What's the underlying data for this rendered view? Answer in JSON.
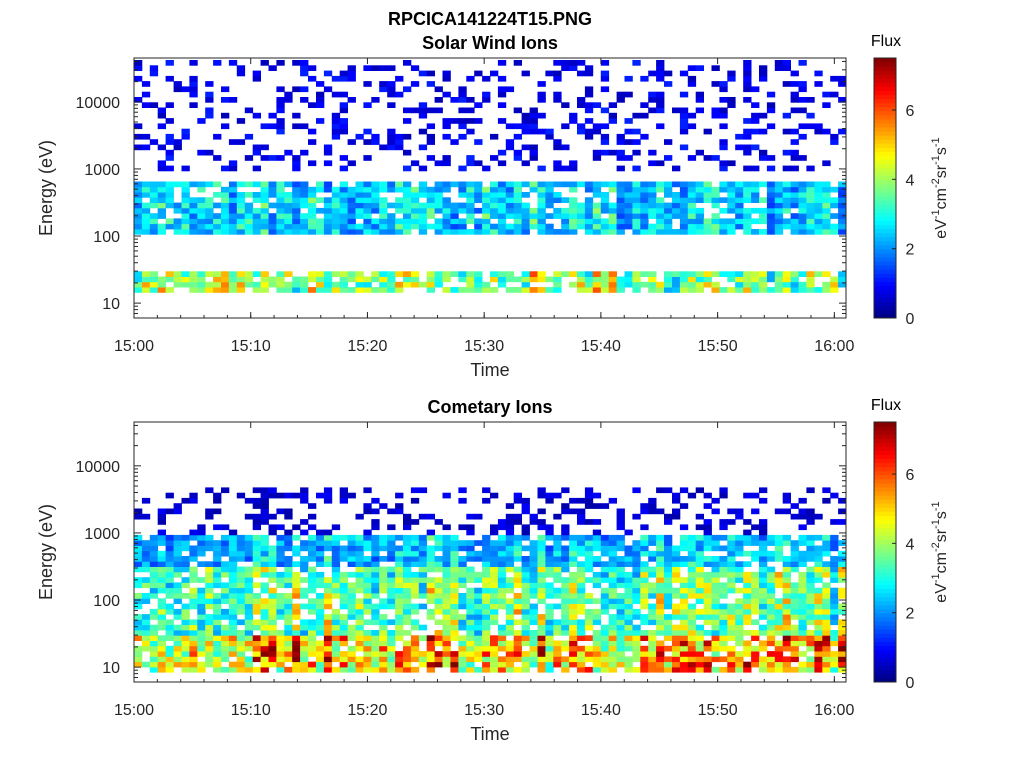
{
  "figure_title": "RPCICA141224T15.PNG",
  "chart_data": [
    {
      "type": "heatmap",
      "title": "Solar Wind Ions",
      "xlabel": "Time",
      "ylabel": "Energy (eV)",
      "y_scale": "log",
      "ylim": [
        6,
        45000
      ],
      "x_range": [
        "15:00",
        "16:01"
      ],
      "x_ticks": [
        "15:00",
        "15:10",
        "15:20",
        "15:30",
        "15:40",
        "15:50",
        "16:00"
      ],
      "y_ticks": [
        "10",
        "100",
        "1000",
        "10000"
      ],
      "colorbar": {
        "title": "Flux",
        "label": "eV-1cm-2sr-1s-1",
        "min": 0,
        "max": 7.5,
        "ticks": [
          "0",
          "2",
          "4",
          "6"
        ],
        "colormap": "jet"
      },
      "description_of_data": "Time-energy spectrogram, ~90 time bins x log-spaced energy bins; dominant flux 2-3 at 100-600 eV, 3-5 at 15-30 eV, sparse low-flux (~0.5-1) speckle above 1000 eV",
      "bands": [
        {
          "energy_range_eV": [
            100,
            600
          ],
          "typical_flux": 2.5
        },
        {
          "energy_range_eV": [
            15,
            30
          ],
          "typical_flux": 3.8
        },
        {
          "energy_range_eV": [
            1000,
            40000
          ],
          "typical_flux": 0.8
        }
      ],
      "seed": 11
    },
    {
      "type": "heatmap",
      "title": "Cometary Ions",
      "xlabel": "Time",
      "ylabel": "Energy (eV)",
      "y_scale": "log",
      "ylim": [
        6,
        45000
      ],
      "x_range": [
        "15:00",
        "16:01"
      ],
      "x_ticks": [
        "15:00",
        "15:10",
        "15:20",
        "15:30",
        "15:40",
        "15:50",
        "16:00"
      ],
      "y_ticks": [
        "10",
        "100",
        "1000",
        "10000"
      ],
      "colorbar": {
        "title": "Flux",
        "label": "eV-1cm-2sr-1s-1",
        "min": 0,
        "max": 7.5,
        "ticks": [
          "0",
          "2",
          "4",
          "6"
        ],
        "colormap": "jet"
      },
      "description_of_data": "Time-energy spectrogram; dense flux 3-5 at 20-300 eV, peaks ~5.5-6.5 at 12-25 eV, decreasing to ~1.5 near 1000 eV, sparse ~0.5 speckle up to 5000 eV",
      "bands": [
        {
          "energy_range_eV": [
            8,
            30
          ],
          "typical_flux": 5.2
        },
        {
          "energy_range_eV": [
            30,
            300
          ],
          "typical_flux": 3.6
        },
        {
          "energy_range_eV": [
            300,
            1000
          ],
          "typical_flux": 2.4
        },
        {
          "energy_range_eV": [
            1000,
            5000
          ],
          "typical_flux": 0.6
        }
      ],
      "seed": 29
    }
  ]
}
